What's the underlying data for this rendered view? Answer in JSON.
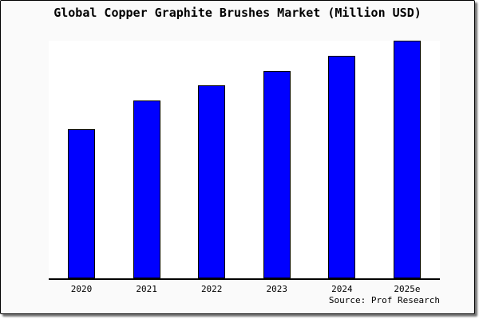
{
  "title": "Global Copper Graphite Brushes Market (Million USD)",
  "source": "Source: Prof Research",
  "colors": {
    "bar_fill": "#0000ff",
    "bar_border": "#000000",
    "card_background": "#fafafa",
    "plot_background": "#ffffff",
    "axis": "#000000"
  },
  "chart_data": {
    "type": "bar",
    "title": "Global Copper Graphite Brushes Market (Million USD)",
    "categories": [
      "2020",
      "2021",
      "2022",
      "2023",
      "2024",
      "2025e"
    ],
    "values": [
      62.7,
      75.0,
      81.3,
      87.3,
      93.7,
      100.0
    ],
    "value_note": "y-axis has no tick labels; values are relative bar heights with 2025e normalized to 100",
    "xlabel": "",
    "ylabel": "",
    "ylim": [
      0,
      100
    ],
    "grid": false,
    "legend": "none",
    "source_annotation": "Source: Prof Research"
  }
}
